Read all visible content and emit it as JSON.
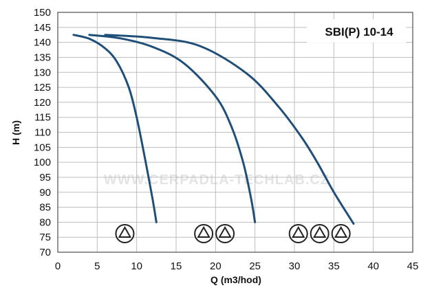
{
  "chart_data": {
    "type": "line",
    "title": "SBI(P) 10-14",
    "xlabel": "Q (m3/hod)",
    "ylabel": "H (m)",
    "xlim": [
      0,
      45
    ],
    "ylim": [
      70,
      150
    ],
    "x_ticks": [
      0,
      5,
      10,
      15,
      20,
      25,
      30,
      35,
      40,
      45
    ],
    "y_ticks": [
      70,
      75,
      80,
      85,
      90,
      95,
      100,
      105,
      110,
      115,
      120,
      125,
      130,
      135,
      140,
      145,
      150
    ],
    "grid": true,
    "legend": "none",
    "line_color": "#1f4e79",
    "series": [
      {
        "pump_symbols": 1,
        "points": [
          [
            2,
            142.5
          ],
          [
            4,
            141.2
          ],
          [
            6,
            138
          ],
          [
            7.5,
            133.5
          ],
          [
            9,
            125
          ],
          [
            10,
            115
          ],
          [
            11,
            102
          ],
          [
            12,
            88
          ],
          [
            12.5,
            80
          ]
        ]
      },
      {
        "pump_symbols": 2,
        "points": [
          [
            4,
            142.5
          ],
          [
            8,
            141.3
          ],
          [
            12,
            138.5
          ],
          [
            16,
            133
          ],
          [
            20,
            122
          ],
          [
            22,
            112
          ],
          [
            23.5,
            100
          ],
          [
            24.5,
            88
          ],
          [
            25,
            80
          ]
        ]
      },
      {
        "pump_symbols": 3,
        "points": [
          [
            6,
            142.5
          ],
          [
            12,
            141.5
          ],
          [
            18,
            138.8
          ],
          [
            24,
            129.5
          ],
          [
            28,
            118.5
          ],
          [
            31,
            108
          ],
          [
            33,
            99.5
          ],
          [
            35,
            90
          ],
          [
            37.5,
            79.5
          ]
        ]
      }
    ],
    "pump_symbol_positions": [
      {
        "x": 8.5,
        "y": 76.2
      },
      {
        "x": 18.5,
        "y": 76.2
      },
      {
        "x": 21.2,
        "y": 76.2
      },
      {
        "x": 30.5,
        "y": 76.2
      },
      {
        "x": 33.2,
        "y": 76.2
      },
      {
        "x": 35.9,
        "y": 76.2
      }
    ],
    "watermark": "WWW.CERPADLA-TECHLAB.CZ"
  }
}
